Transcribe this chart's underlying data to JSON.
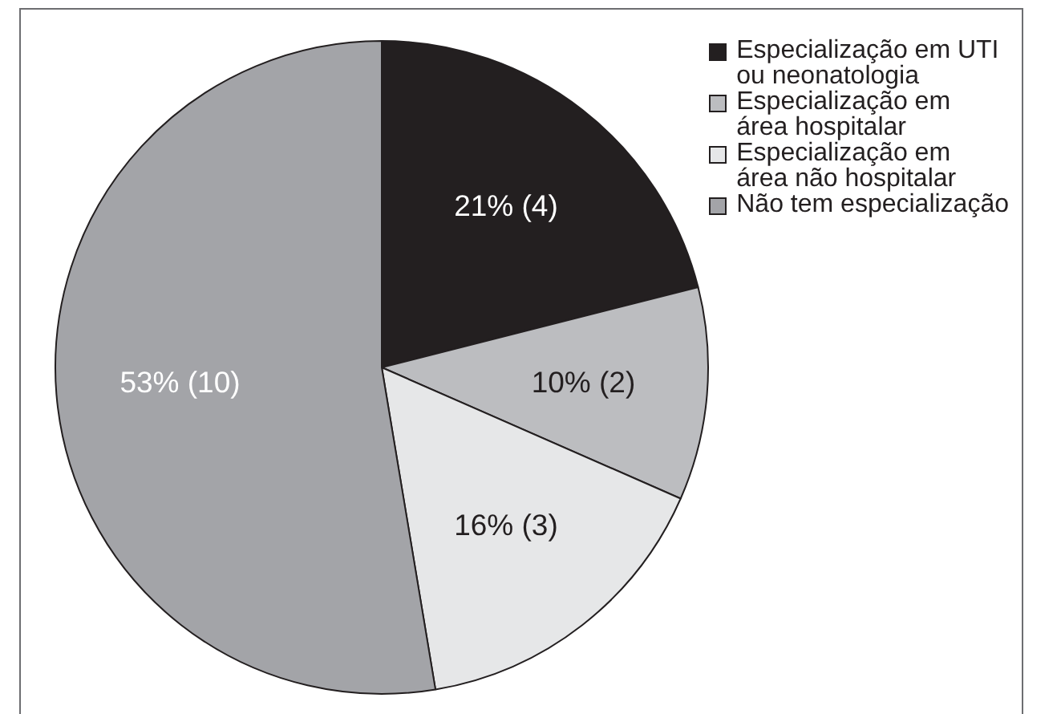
{
  "chart_data": {
    "type": "pie",
    "categories": [
      "Especialização em UTI\nou neonatologia",
      "Especialização em\nárea hospitalar",
      "Especialização em\nárea não hospitalar",
      "Não tem especialização"
    ],
    "values": [
      4,
      2,
      3,
      10
    ],
    "colors": [
      "#231f20",
      "#bcbdc0",
      "#e6e7e8",
      "#a3a4a8"
    ],
    "value_labels": [
      "21% (4)",
      "10% (2)",
      "16% (3)",
      "53% (10)"
    ],
    "legend": "top right"
  }
}
